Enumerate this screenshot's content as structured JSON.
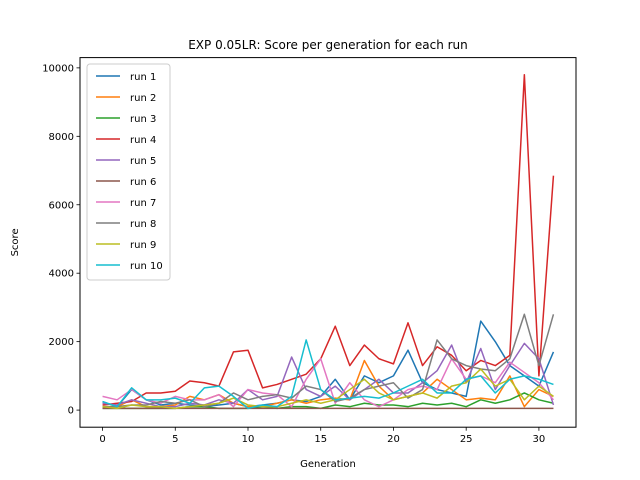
{
  "chart_data": {
    "type": "line",
    "title": "EXP 0.05LR: Score per generation for each run",
    "xlabel": "Generation",
    "ylabel": "Score",
    "xlim": [
      -1.55,
      32.55
    ],
    "ylim": [
      -500,
      10300
    ],
    "xticks": [
      0,
      5,
      10,
      15,
      20,
      25,
      30
    ],
    "yticks": [
      0,
      2000,
      4000,
      6000,
      8000,
      10000
    ],
    "grid": false,
    "legend_position": "top-left",
    "x": [
      0,
      1,
      2,
      3,
      4,
      5,
      6,
      7,
      8,
      9,
      10,
      11,
      12,
      13,
      14,
      15,
      16,
      17,
      18,
      19,
      20,
      21,
      22,
      23,
      24,
      25,
      26,
      27,
      28,
      29,
      30,
      31
    ],
    "series": [
      {
        "name": "run 1",
        "color": "#1f77b4",
        "values": [
          250,
          100,
          600,
          300,
          150,
          200,
          150,
          100,
          150,
          200,
          100,
          150,
          200,
          300,
          250,
          400,
          900,
          300,
          1000,
          800,
          1000,
          1750,
          800,
          600,
          500,
          400,
          2600,
          2000,
          1300,
          1000,
          700,
          1700
        ]
      },
      {
        "name": "run 2",
        "color": "#ff7f0e",
        "values": [
          100,
          100,
          300,
          100,
          100,
          150,
          400,
          300,
          450,
          200,
          100,
          100,
          200,
          300,
          200,
          300,
          350,
          300,
          1450,
          700,
          300,
          400,
          500,
          900,
          600,
          300,
          350,
          300,
          1000,
          100,
          600,
          400
        ]
      },
      {
        "name": "run 3",
        "color": "#2ca02c",
        "values": [
          50,
          50,
          50,
          50,
          50,
          50,
          100,
          100,
          50,
          50,
          50,
          100,
          50,
          100,
          100,
          50,
          150,
          100,
          200,
          150,
          150,
          100,
          200,
          150,
          200,
          100,
          300,
          200,
          300,
          500,
          300,
          200
        ]
      },
      {
        "name": "run 4",
        "color": "#d62728",
        "values": [
          150,
          200,
          250,
          500,
          500,
          550,
          850,
          800,
          700,
          1700,
          1750,
          650,
          750,
          900,
          1050,
          1500,
          2450,
          1300,
          1900,
          1500,
          1350,
          2550,
          1300,
          1850,
          1600,
          1150,
          1450,
          1300,
          1600,
          9800,
          1000,
          6850
        ]
      },
      {
        "name": "run 5",
        "color": "#9467bd",
        "values": [
          200,
          150,
          300,
          200,
          100,
          100,
          200,
          150,
          300,
          200,
          600,
          300,
          400,
          1550,
          600,
          400,
          700,
          300,
          600,
          900,
          500,
          500,
          800,
          1150,
          1900,
          800,
          1800,
          600,
          1300,
          1950,
          1500,
          150
        ]
      },
      {
        "name": "run 6",
        "color": "#8c564b",
        "values": [
          50,
          50,
          50,
          50,
          50,
          50,
          50,
          50,
          50,
          50,
          50,
          50,
          50,
          50,
          50,
          50,
          50,
          50,
          50,
          50,
          50,
          50,
          50,
          50,
          50,
          50,
          50,
          50,
          50,
          50,
          50,
          50
        ]
      },
      {
        "name": "run 7",
        "color": "#e377c2",
        "values": [
          400,
          300,
          600,
          300,
          200,
          400,
          300,
          300,
          450,
          100,
          600,
          500,
          450,
          100,
          900,
          1500,
          200,
          800,
          300,
          100,
          300,
          600,
          700,
          600,
          1500,
          900,
          1000,
          800,
          1400,
          1100,
          800,
          300
        ]
      },
      {
        "name": "run 8",
        "color": "#7f7f7f",
        "values": [
          100,
          100,
          150,
          150,
          250,
          200,
          300,
          100,
          200,
          500,
          300,
          400,
          450,
          350,
          700,
          600,
          250,
          350,
          600,
          700,
          800,
          350,
          600,
          2050,
          1500,
          1300,
          1200,
          1150,
          1500,
          2800,
          1300,
          2800
        ]
      },
      {
        "name": "run 9",
        "color": "#bcbd22",
        "values": [
          100,
          50,
          150,
          100,
          100,
          50,
          100,
          150,
          200,
          350,
          150,
          100,
          100,
          200,
          300,
          200,
          300,
          600,
          900,
          500,
          300,
          400,
          500,
          350,
          700,
          800,
          1200,
          700,
          900,
          300,
          700,
          400
        ]
      },
      {
        "name": "run 10",
        "color": "#17becf",
        "values": [
          250,
          100,
          650,
          300,
          300,
          350,
          200,
          650,
          700,
          400,
          50,
          150,
          100,
          400,
          2050,
          600,
          300,
          350,
          400,
          350,
          500,
          700,
          900,
          500,
          500,
          900,
          1000,
          500,
          900,
          1000,
          900,
          750
        ]
      }
    ]
  }
}
